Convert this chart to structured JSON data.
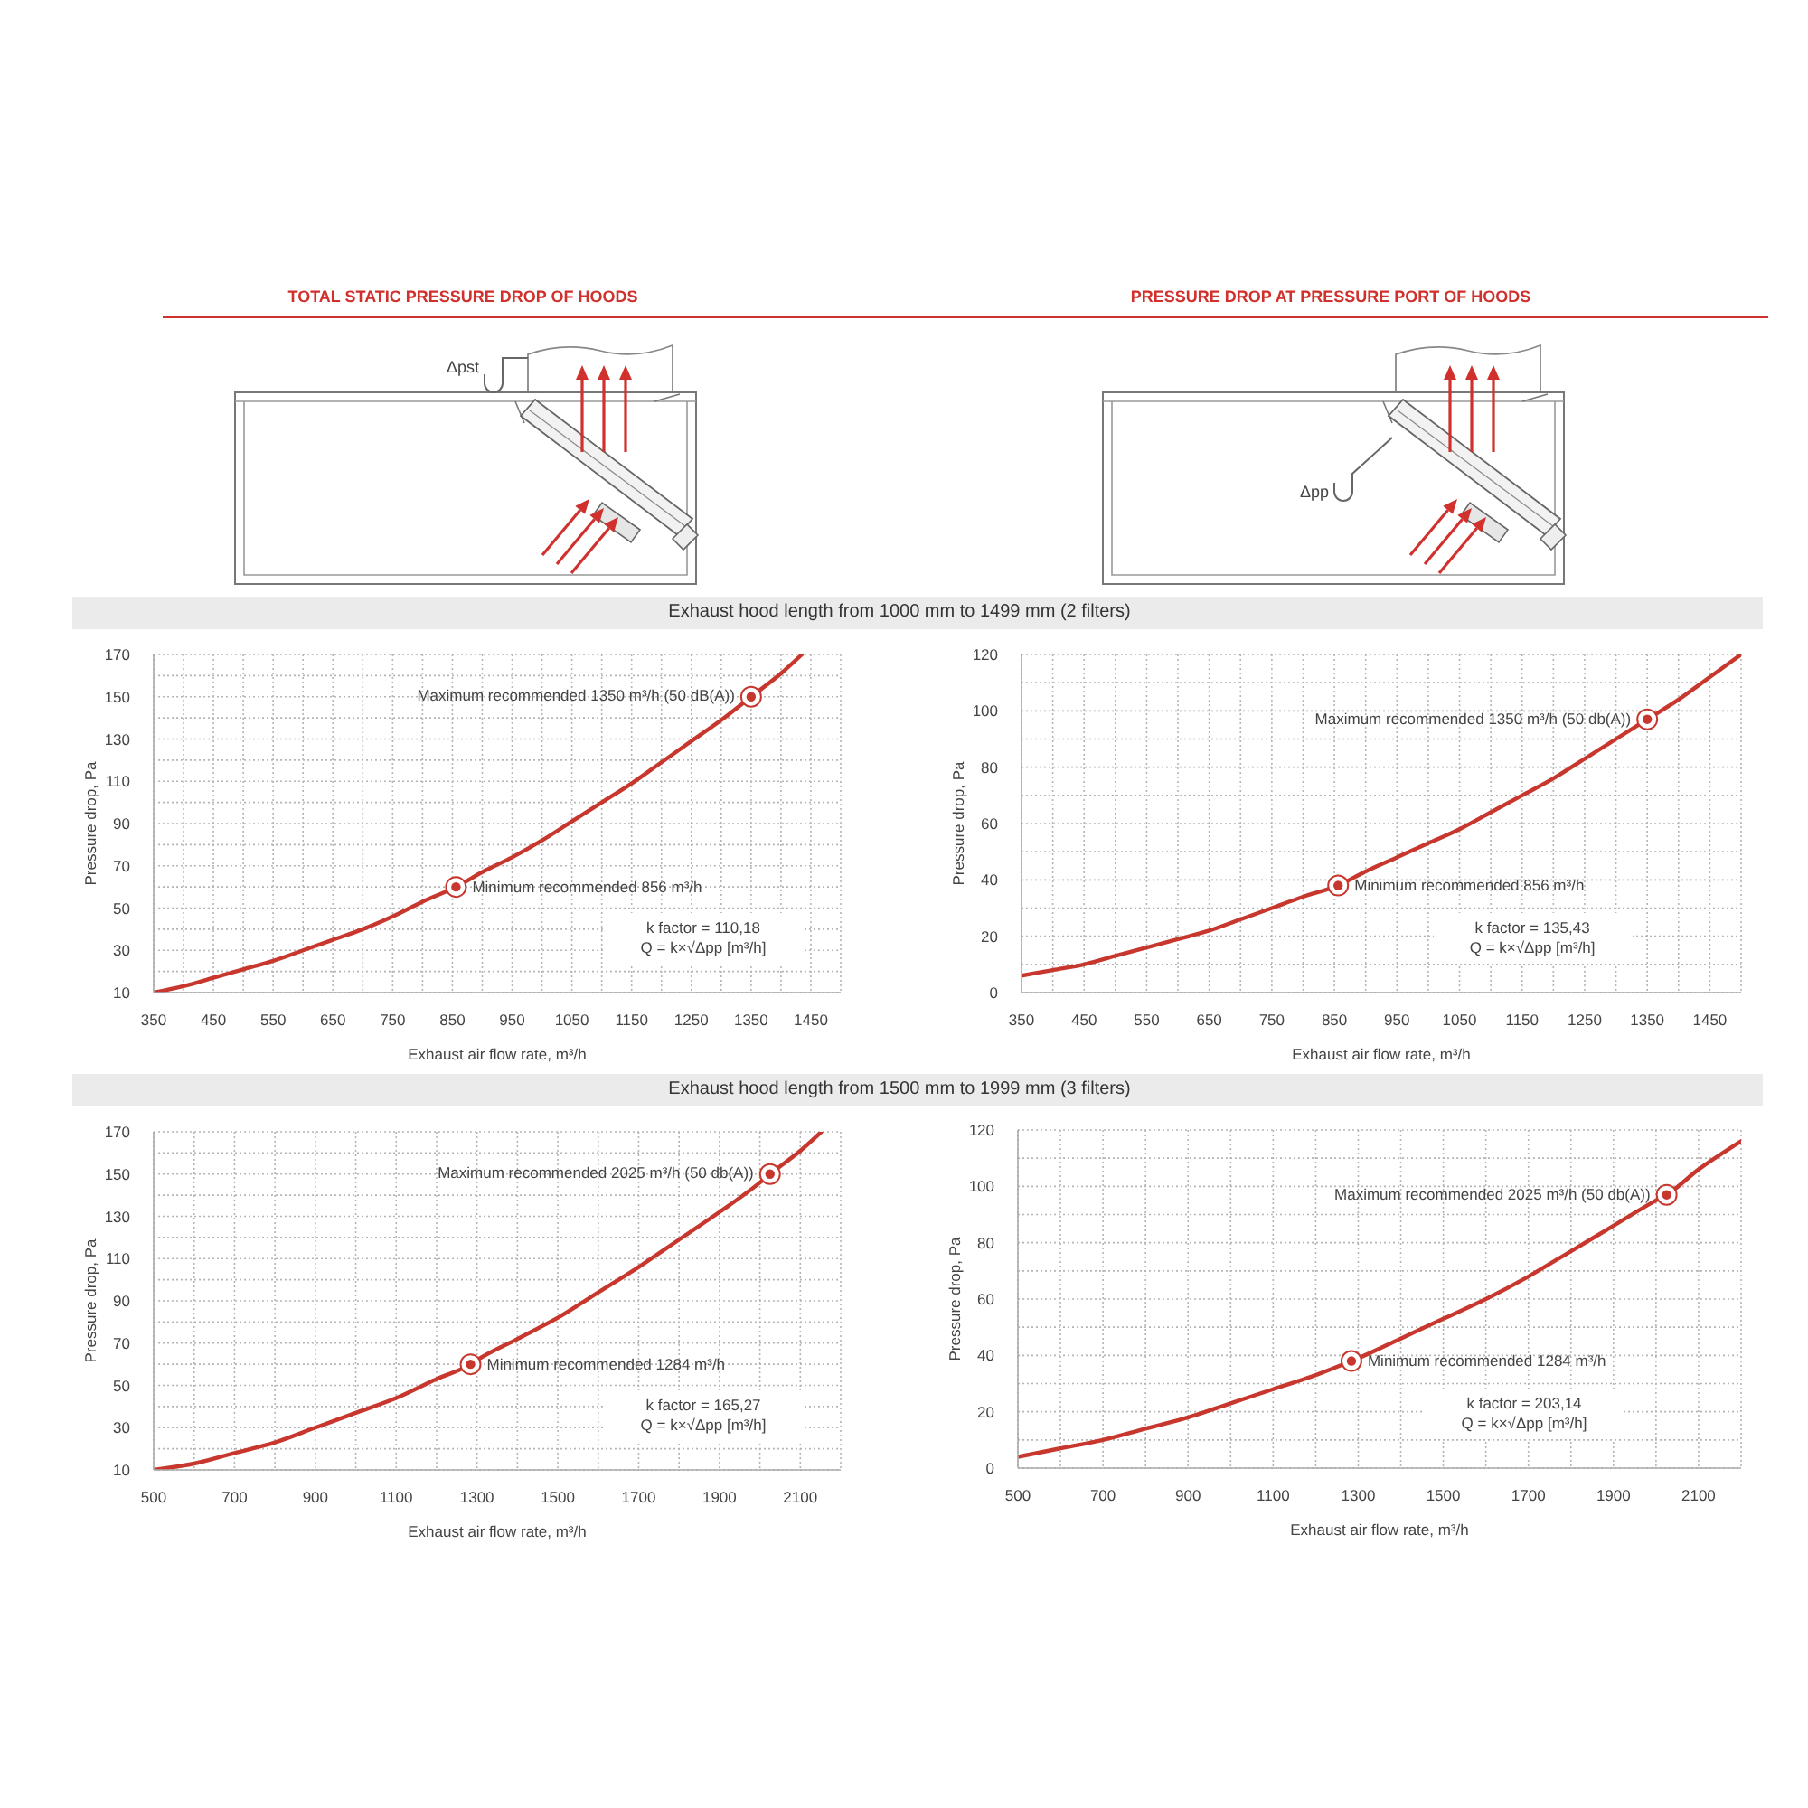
{
  "chart_data": [
    {
      "type": "other",
      "title": "TOTAL STATIC PRESSURE DROP OF HOODS",
      "annotations": [
        "Δpst"
      ]
    },
    {
      "type": "other",
      "title": "PRESSURE DROP AT PRESSURE PORT OF HOODS",
      "annotations": [
        "Δpp"
      ]
    },
    {
      "type": "line",
      "title": "Exhaust hood length from 1000 mm to 1499 mm (2 filters)",
      "xlabel": "Exhaust air flow rate, m³/h",
      "ylabel": "Pressure drop, Pa",
      "series": [
        {
          "color": "#c8372d",
          "x": [
            350,
            400,
            450,
            500,
            550,
            600,
            650,
            700,
            750,
            800,
            856,
            900,
            950,
            1000,
            1050,
            1100,
            1150,
            1200,
            1250,
            1300,
            1350,
            1400,
            1435
          ],
          "values": [
            10,
            13,
            17,
            21,
            25,
            30,
            35,
            40,
            46,
            53,
            60,
            67,
            74,
            82,
            91,
            100,
            109,
            119,
            129,
            139,
            150,
            161,
            170
          ]
        },
        {
          "type": "scatter",
          "color": "#c8372d",
          "marker": "circle",
          "x": [
            856,
            1350
          ],
          "values": [
            60,
            150
          ]
        }
      ],
      "annotations": [
        {
          "text": "Maximum recommended 1350 m³/h (50 dB(A))",
          "x": 1350,
          "y": 150
        },
        {
          "text": "Minimum recommended 856 m³/h",
          "x": 856,
          "y": 60
        },
        "k factor = 110,18",
        "Q = k×√Δpp [m³/h]"
      ],
      "xlim": [
        350,
        1500
      ],
      "xticks": [
        350,
        {
          "value": 400,
          "label": null
        },
        450,
        {
          "value": 500,
          "label": null
        },
        550,
        {
          "value": 600,
          "label": null
        },
        650,
        {
          "value": 700,
          "label": null
        },
        750,
        {
          "value": 800,
          "label": null
        },
        850,
        {
          "value": 900,
          "label": null
        },
        950,
        {
          "value": 1000,
          "label": null
        },
        1050,
        {
          "value": 1100,
          "label": null
        },
        1150,
        {
          "value": 1200,
          "label": null
        },
        1250,
        {
          "value": 1300,
          "label": null
        },
        1350,
        {
          "value": 1400,
          "label": null
        },
        1450,
        {
          "value": 1500,
          "label": null
        }
      ],
      "ylim": [
        10,
        170
      ],
      "yticks": [
        10,
        {
          "value": 20,
          "label": null
        },
        30,
        {
          "value": 40,
          "label": null
        },
        50,
        {
          "value": 60,
          "label": null
        },
        70,
        {
          "value": 80,
          "label": null
        },
        90,
        {
          "value": 100,
          "label": null
        },
        110,
        {
          "value": 120,
          "label": null
        },
        130,
        {
          "value": 140,
          "label": null
        },
        150,
        {
          "value": 160,
          "label": null
        },
        170
      ],
      "grid": true
    },
    {
      "type": "line",
      "xlabel": "Exhaust air flow rate, m³/h",
      "ylabel": "Pressure drop, Pa",
      "series": [
        {
          "color": "#c8372d",
          "x": [
            350,
            400,
            450,
            500,
            550,
            600,
            650,
            700,
            750,
            800,
            856,
            900,
            950,
            1000,
            1050,
            1100,
            1150,
            1200,
            1250,
            1300,
            1350,
            1400,
            1450,
            1500
          ],
          "values": [
            6,
            8,
            10,
            13,
            16,
            19,
            22,
            26,
            30,
            34,
            38,
            43,
            48,
            53,
            58,
            64,
            70,
            76,
            83,
            90,
            97,
            104,
            112,
            120
          ]
        },
        {
          "type": "scatter",
          "color": "#c8372d",
          "marker": "circle",
          "x": [
            856,
            1350
          ],
          "values": [
            38,
            97
          ]
        }
      ],
      "annotations": [
        {
          "text": "Maximum recommended 1350 m³/h (50 db(A))",
          "x": 1350,
          "y": 97
        },
        {
          "text": "Minimum recommended 856 m³/h",
          "x": 856,
          "y": 38
        },
        "k factor = 135,43",
        "Q = k×√Δpp [m³/h]"
      ],
      "xlim": [
        350,
        1500
      ],
      "xticks": [
        350,
        {
          "value": 400,
          "label": null
        },
        450,
        {
          "value": 500,
          "label": null
        },
        550,
        {
          "value": 600,
          "label": null
        },
        650,
        {
          "value": 700,
          "label": null
        },
        750,
        {
          "value": 800,
          "label": null
        },
        850,
        {
          "value": 900,
          "label": null
        },
        950,
        {
          "value": 1000,
          "label": null
        },
        1050,
        {
          "value": 1100,
          "label": null
        },
        1150,
        {
          "value": 1200,
          "label": null
        },
        1250,
        {
          "value": 1300,
          "label": null
        },
        1350,
        {
          "value": 1400,
          "label": null
        },
        1450,
        {
          "value": 1500,
          "label": null
        }
      ],
      "ylim": [
        0,
        120
      ],
      "yticks": [
        0,
        {
          "value": 10,
          "label": null
        },
        20,
        {
          "value": 30,
          "label": null
        },
        40,
        {
          "value": 50,
          "label": null
        },
        60,
        {
          "value": 70,
          "label": null
        },
        80,
        {
          "value": 90,
          "label": null
        },
        100,
        {
          "value": 110,
          "label": null
        },
        120
      ],
      "grid": true
    },
    {
      "type": "line",
      "title": "Exhaust hood length from 1500 mm to 1999 mm (3 filters)",
      "xlabel": "Exhaust air flow rate, m³/h",
      "ylabel": "Pressure drop, Pa",
      "series": [
        {
          "color": "#c8372d",
          "x": [
            500,
            600,
            700,
            800,
            900,
            1000,
            1100,
            1200,
            1284,
            1300,
            1400,
            1500,
            1600,
            1700,
            1800,
            1900,
            2000,
            2025,
            2100,
            2152
          ],
          "values": [
            10,
            13,
            18,
            23,
            30,
            37,
            44,
            53,
            60,
            62,
            72,
            82,
            94,
            106,
            119,
            132,
            146,
            150,
            161,
            170
          ]
        },
        {
          "type": "scatter",
          "color": "#c8372d",
          "marker": "circle",
          "x": [
            1284,
            2025
          ],
          "values": [
            60,
            150
          ]
        }
      ],
      "annotations": [
        {
          "text": "Maximum recommended 2025 m³/h (50 db(A))",
          "x": 2025,
          "y": 150
        },
        {
          "text": "Minimum recommended 1284 m³/h",
          "x": 1284,
          "y": 60
        },
        "k factor = 165,27",
        "Q = k×√Δpp [m³/h]"
      ],
      "xlim": [
        500,
        2200
      ],
      "xticks": [
        500,
        {
          "value": 600,
          "label": null
        },
        700,
        {
          "value": 800,
          "label": null
        },
        900,
        {
          "value": 1000,
          "label": null
        },
        1100,
        {
          "value": 1200,
          "label": null
        },
        1300,
        {
          "value": 1400,
          "label": null
        },
        1500,
        {
          "value": 1600,
          "label": null
        },
        1700,
        {
          "value": 1800,
          "label": null
        },
        1900,
        {
          "value": 2000,
          "label": null
        },
        2100,
        {
          "value": 2200,
          "label": null
        }
      ],
      "ylim": [
        10,
        170
      ],
      "yticks": [
        10,
        {
          "value": 20,
          "label": null
        },
        30,
        {
          "value": 40,
          "label": null
        },
        50,
        {
          "value": 60,
          "label": null
        },
        70,
        {
          "value": 80,
          "label": null
        },
        90,
        {
          "value": 100,
          "label": null
        },
        110,
        {
          "value": 120,
          "label": null
        },
        130,
        {
          "value": 140,
          "label": null
        },
        150,
        {
          "value": 160,
          "label": null
        },
        170
      ],
      "grid": true
    },
    {
      "type": "line",
      "xlabel": "Exhaust air flow rate, m³/h",
      "ylabel": "Pressure drop, Pa",
      "series": [
        {
          "color": "#c8372d",
          "x": [
            500,
            600,
            700,
            800,
            900,
            1000,
            1100,
            1200,
            1284,
            1300,
            1400,
            1500,
            1600,
            1700,
            1800,
            1900,
            2000,
            2025,
            2100,
            2200
          ],
          "values": [
            4,
            7,
            10,
            14,
            18,
            23,
            28,
            33,
            38,
            39,
            46,
            53,
            60,
            68,
            77,
            86,
            95,
            97,
            106,
            116
          ]
        },
        {
          "type": "scatter",
          "color": "#c8372d",
          "marker": "circle",
          "x": [
            1284,
            2025
          ],
          "values": [
            38,
            97
          ]
        }
      ],
      "annotations": [
        {
          "text": "Maximum recommended 2025 m³/h (50 db(A))",
          "x": 2025,
          "y": 97
        },
        {
          "text": "Minimum recommended 1284 m³/h",
          "x": 1284,
          "y": 38
        },
        "k factor = 203,14",
        "Q = k×√Δpp [m³/h]"
      ],
      "xlim": [
        500,
        2200
      ],
      "xticks": [
        500,
        {
          "value": 600,
          "label": null
        },
        700,
        {
          "value": 800,
          "label": null
        },
        900,
        {
          "value": 1000,
          "label": null
        },
        1100,
        {
          "value": 1200,
          "label": null
        },
        1300,
        {
          "value": 1400,
          "label": null
        },
        1500,
        {
          "value": 1600,
          "label": null
        },
        1700,
        {
          "value": 1800,
          "label": null
        },
        1900,
        {
          "value": 2000,
          "label": null
        },
        2100,
        {
          "value": 2200,
          "label": null
        }
      ],
      "ylim": [
        0,
        120
      ],
      "yticks": [
        0,
        {
          "value": 10,
          "label": null
        },
        20,
        {
          "value": 30,
          "label": null
        },
        40,
        {
          "value": 50,
          "label": null
        },
        60,
        {
          "value": 70,
          "label": null
        },
        80,
        {
          "value": 90,
          "label": null
        },
        100,
        {
          "value": 110,
          "label": null
        },
        120
      ],
      "grid": true
    }
  ]
}
